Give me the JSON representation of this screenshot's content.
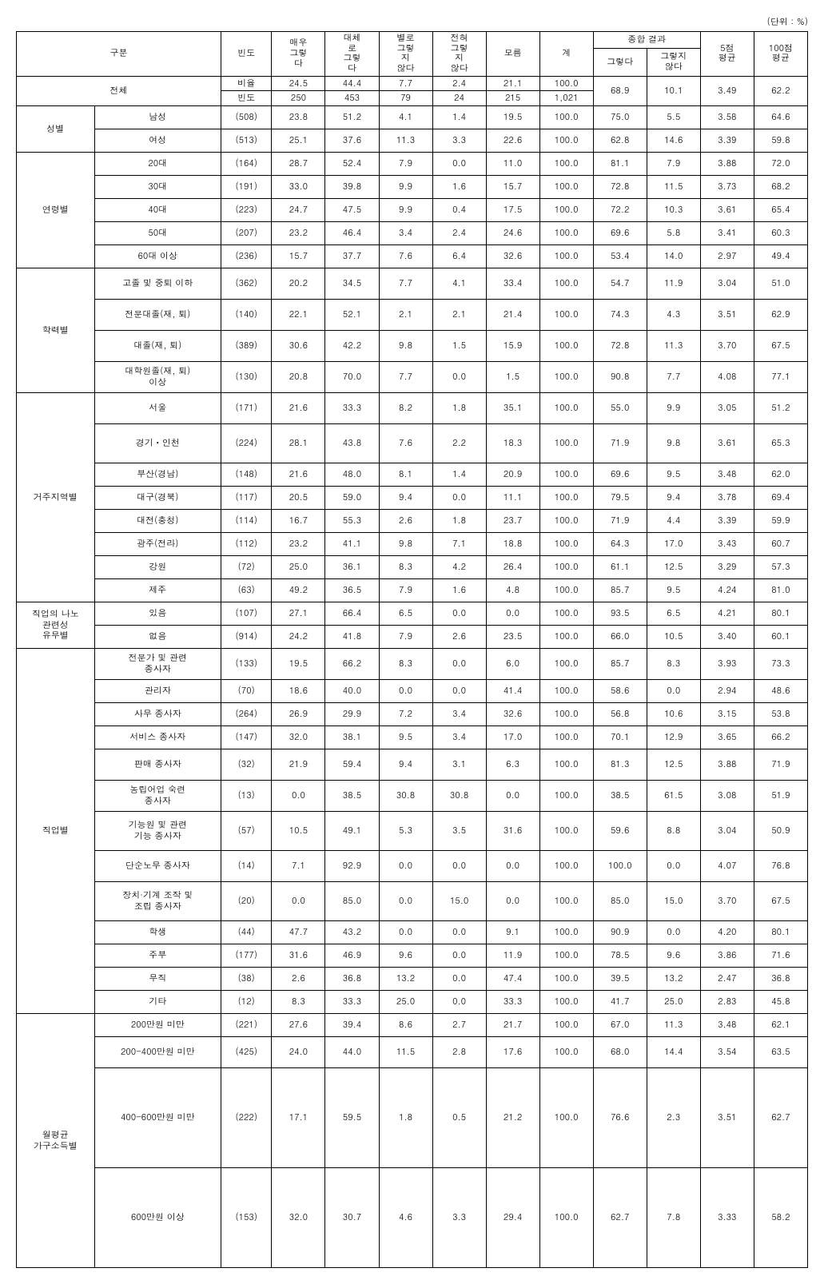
{
  "unit": "(단위 : %)",
  "headers": {
    "gubun": "구분",
    "bindo": "빈도",
    "c1": "매우\n그렇\n다",
    "c2": "대체\n로\n그렇\n다",
    "c3": "별로\n그렇\n지\n않다",
    "c4": "전혀\n그렇\n지\n않다",
    "c5": "모름",
    "total": "계",
    "comb": "종합 결과",
    "comb1": "그렇다",
    "comb2": "그렇지\n않다",
    "avg5": "5점\n평균",
    "avg100": "100점\n평균"
  },
  "overall": {
    "label": "전체",
    "r1_label": "비율",
    "r2_label": "빈도",
    "r1": [
      "24.5",
      "44.4",
      "7.7",
      "2.4",
      "21.1",
      "100.0"
    ],
    "r2": [
      "250",
      "453",
      "79",
      "24",
      "215",
      "1,021"
    ],
    "merge": [
      "68.9",
      "10.1",
      "3.49",
      "62.2"
    ]
  },
  "groups": [
    {
      "name": "성별",
      "rows": [
        {
          "label": "남성",
          "v": [
            "(508)",
            "23.8",
            "51.2",
            "4.1",
            "1.4",
            "19.5",
            "100.0",
            "75.0",
            "5.5",
            "3.58",
            "64.6"
          ],
          "cls": "sm-row"
        },
        {
          "label": "여성",
          "v": [
            "(513)",
            "25.1",
            "37.6",
            "11.3",
            "3.3",
            "22.6",
            "100.0",
            "62.8",
            "14.6",
            "3.39",
            "59.8"
          ],
          "cls": "sm-row"
        }
      ]
    },
    {
      "name": "연령별",
      "rows": [
        {
          "label": "20대",
          "v": [
            "(164)",
            "28.7",
            "52.4",
            "7.9",
            "0.0",
            "11.0",
            "100.0",
            "81.1",
            "7.9",
            "3.88",
            "72.0"
          ],
          "cls": "sm-row"
        },
        {
          "label": "30대",
          "v": [
            "(191)",
            "33.0",
            "39.8",
            "9.9",
            "1.6",
            "15.7",
            "100.0",
            "72.8",
            "11.5",
            "3.73",
            "68.2"
          ],
          "cls": "sm-row"
        },
        {
          "label": "40대",
          "v": [
            "(223)",
            "24.7",
            "47.5",
            "9.9",
            "0.4",
            "17.5",
            "100.0",
            "72.2",
            "10.3",
            "3.61",
            "65.4"
          ],
          "cls": "sm-row"
        },
        {
          "label": "50대",
          "v": [
            "(207)",
            "23.2",
            "46.4",
            "3.4",
            "2.4",
            "24.6",
            "100.0",
            "69.6",
            "5.8",
            "3.41",
            "60.3"
          ],
          "cls": "sm-row"
        },
        {
          "label": "60대 이상",
          "v": [
            "(236)",
            "15.7",
            "37.7",
            "7.6",
            "6.4",
            "32.6",
            "100.0",
            "53.4",
            "14.0",
            "2.97",
            "49.4"
          ],
          "cls": "sm-row"
        }
      ]
    },
    {
      "name": "학력별",
      "rows": [
        {
          "label": "고졸 및 중퇴 이하",
          "v": [
            "(362)",
            "20.2",
            "34.5",
            "7.7",
            "4.1",
            "33.4",
            "100.0",
            "54.7",
            "11.9",
            "3.04",
            "51.0"
          ],
          "cls": "mrow"
        },
        {
          "label": "전문대졸(재, 퇴)",
          "v": [
            "(140)",
            "22.1",
            "52.1",
            "2.1",
            "2.1",
            "21.4",
            "100.0",
            "74.3",
            "4.3",
            "3.51",
            "62.9"
          ],
          "cls": "mrow"
        },
        {
          "label": "대졸(재, 퇴)",
          "v": [
            "(389)",
            "30.6",
            "42.2",
            "9.8",
            "1.5",
            "15.9",
            "100.0",
            "72.8",
            "11.3",
            "3.70",
            "67.5"
          ],
          "cls": "mrow"
        },
        {
          "label": "대학원졸(재, 퇴)\n이상",
          "v": [
            "(130)",
            "20.8",
            "70.0",
            "7.7",
            "0.0",
            "1.5",
            "100.0",
            "90.8",
            "7.7",
            "4.08",
            "77.1"
          ],
          "cls": "mrow"
        }
      ]
    },
    {
      "name": "거주지역별",
      "rows": [
        {
          "label": "서울",
          "v": [
            "(171)",
            "21.6",
            "33.3",
            "8.2",
            "1.8",
            "35.1",
            "100.0",
            "55.0",
            "9.9",
            "3.05",
            "51.2"
          ],
          "cls": "mrow"
        },
        {
          "label": "경기ㆍ인천",
          "v": [
            "(224)",
            "28.1",
            "43.8",
            "7.6",
            "2.2",
            "18.3",
            "100.0",
            "71.9",
            "9.8",
            "3.61",
            "65.3"
          ],
          "cls": "med-row"
        },
        {
          "label": "부산(경남)",
          "v": [
            "(148)",
            "21.6",
            "48.0",
            "8.1",
            "1.4",
            "20.9",
            "100.0",
            "69.6",
            "9.5",
            "3.48",
            "62.0"
          ],
          "cls": "sm-row"
        },
        {
          "label": "대구(경북)",
          "v": [
            "(117)",
            "20.5",
            "59.0",
            "9.4",
            "0.0",
            "11.1",
            "100.0",
            "79.5",
            "9.4",
            "3.78",
            "69.4"
          ],
          "cls": "sm-row"
        },
        {
          "label": "대전(충청)",
          "v": [
            "(114)",
            "16.7",
            "55.3",
            "2.6",
            "1.8",
            "23.7",
            "100.0",
            "71.9",
            "4.4",
            "3.39",
            "59.9"
          ],
          "cls": "sm-row"
        },
        {
          "label": "광주(전라)",
          "v": [
            "(112)",
            "23.2",
            "41.1",
            "9.8",
            "7.1",
            "18.8",
            "100.0",
            "64.3",
            "17.0",
            "3.43",
            "60.7"
          ],
          "cls": "sm-row"
        },
        {
          "label": "강원",
          "v": [
            "(72)",
            "25.0",
            "36.1",
            "8.3",
            "4.2",
            "26.4",
            "100.0",
            "61.1",
            "12.5",
            "3.29",
            "57.3"
          ],
          "cls": "sm-row"
        },
        {
          "label": "제주",
          "v": [
            "(63)",
            "49.2",
            "36.5",
            "7.9",
            "1.6",
            "4.8",
            "100.0",
            "85.7",
            "9.5",
            "4.24",
            "81.0"
          ],
          "cls": "sm-row"
        }
      ]
    },
    {
      "name": "직업의 나노\n관련성\n유무별",
      "rows": [
        {
          "label": "있음",
          "v": [
            "(107)",
            "27.1",
            "66.4",
            "6.5",
            "0.0",
            "0.0",
            "100.0",
            "93.5",
            "6.5",
            "4.21",
            "80.1"
          ],
          "cls": "sm-row"
        },
        {
          "label": "없음",
          "v": [
            "(914)",
            "24.2",
            "41.8",
            "7.9",
            "2.6",
            "23.5",
            "100.0",
            "66.0",
            "10.5",
            "3.40",
            "60.1"
          ],
          "cls": "sm-row"
        }
      ]
    },
    {
      "name": "직업별",
      "rows": [
        {
          "label": "전문가 및 관련\n종사자",
          "v": [
            "(133)",
            "19.5",
            "66.2",
            "8.3",
            "0.0",
            "6.0",
            "100.0",
            "85.7",
            "8.3",
            "3.93",
            "73.3"
          ],
          "cls": "mrow"
        },
        {
          "label": "관리자",
          "v": [
            "(70)",
            "18.6",
            "40.0",
            "0.0",
            "0.0",
            "41.4",
            "100.0",
            "58.6",
            "0.0",
            "2.94",
            "48.6"
          ],
          "cls": "sm-row"
        },
        {
          "label": "사무 종사자",
          "v": [
            "(264)",
            "26.9",
            "29.9",
            "7.2",
            "3.4",
            "32.6",
            "100.0",
            "56.8",
            "10.6",
            "3.15",
            "53.8"
          ],
          "cls": "sm-row"
        },
        {
          "label": "서비스 종사자",
          "v": [
            "(147)",
            "32.0",
            "38.1",
            "9.5",
            "3.4",
            "17.0",
            "100.0",
            "70.1",
            "12.9",
            "3.65",
            "66.2"
          ],
          "cls": "sm-row"
        },
        {
          "label": "판매 종사자",
          "v": [
            "(32)",
            "21.9",
            "59.4",
            "9.4",
            "3.1",
            "6.3",
            "100.0",
            "81.3",
            "12.5",
            "3.88",
            "71.9"
          ],
          "cls": "mrow"
        },
        {
          "label": "농립어업 숙련\n종사자",
          "v": [
            "(13)",
            "0.0",
            "38.5",
            "30.8",
            "30.8",
            "0.0",
            "100.0",
            "38.5",
            "61.5",
            "3.08",
            "51.9"
          ],
          "cls": "mrow"
        },
        {
          "label": "기능원 및 관련\n기능 종사자",
          "v": [
            "(57)",
            "10.5",
            "49.1",
            "5.3",
            "3.5",
            "31.6",
            "100.0",
            "59.6",
            "8.8",
            "3.04",
            "50.9"
          ],
          "cls": "med-row"
        },
        {
          "label": "단순노무 종사자",
          "v": [
            "(14)",
            "7.1",
            "92.9",
            "0.0",
            "0.0",
            "0.0",
            "100.0",
            "100.0",
            "0.0",
            "4.07",
            "76.8"
          ],
          "cls": "mrow"
        },
        {
          "label": "장치·기계 조작 및\n조립   종사자",
          "v": [
            "(20)",
            "0.0",
            "85.0",
            "0.0",
            "15.0",
            "0.0",
            "100.0",
            "85.0",
            "15.0",
            "3.70",
            "67.5"
          ],
          "cls": "med-row"
        },
        {
          "label": "학생",
          "v": [
            "(44)",
            "47.7",
            "43.2",
            "0.0",
            "0.0",
            "9.1",
            "100.0",
            "90.9",
            "0.0",
            "4.20",
            "80.1"
          ],
          "cls": "sm-row"
        },
        {
          "label": "주부",
          "v": [
            "(177)",
            "31.6",
            "46.9",
            "9.6",
            "0.0",
            "11.9",
            "100.0",
            "78.5",
            "9.6",
            "3.86",
            "71.6"
          ],
          "cls": "sm-row"
        },
        {
          "label": "무직",
          "v": [
            "(38)",
            "2.6",
            "36.8",
            "13.2",
            "0.0",
            "47.4",
            "100.0",
            "39.5",
            "13.2",
            "2.47",
            "36.8"
          ],
          "cls": "sm-row"
        },
        {
          "label": "기타",
          "v": [
            "(12)",
            "8.3",
            "33.3",
            "25.0",
            "0.0",
            "33.3",
            "100.0",
            "41.7",
            "25.0",
            "2.83",
            "45.8"
          ],
          "cls": "sm-row"
        }
      ]
    },
    {
      "name": "월평균\n가구소득별",
      "rows": [
        {
          "label": "200만원 미만",
          "v": [
            "(221)",
            "27.6",
            "39.4",
            "8.6",
            "2.7",
            "21.7",
            "100.0",
            "67.0",
            "11.3",
            "3.48",
            "62.1"
          ],
          "cls": "sm-row"
        },
        {
          "label": "200-400만원 미만",
          "v": [
            "(425)",
            "24.0",
            "44.0",
            "11.5",
            "2.8",
            "17.6",
            "100.0",
            "68.0",
            "14.4",
            "3.54",
            "63.5"
          ],
          "cls": "mrow"
        },
        {
          "label": "400-600만원 미만",
          "v": [
            "(222)",
            "17.1",
            "59.5",
            "1.8",
            "0.5",
            "21.2",
            "100.0",
            "76.6",
            "2.3",
            "3.51",
            "62.7"
          ],
          "cls": "tall-row"
        },
        {
          "label": "600만원 이상",
          "v": [
            "(153)",
            "32.0",
            "30.7",
            "4.6",
            "3.3",
            "29.4",
            "100.0",
            "62.7",
            "7.8",
            "3.33",
            "58.2"
          ],
          "cls": "tall-row"
        }
      ]
    }
  ]
}
